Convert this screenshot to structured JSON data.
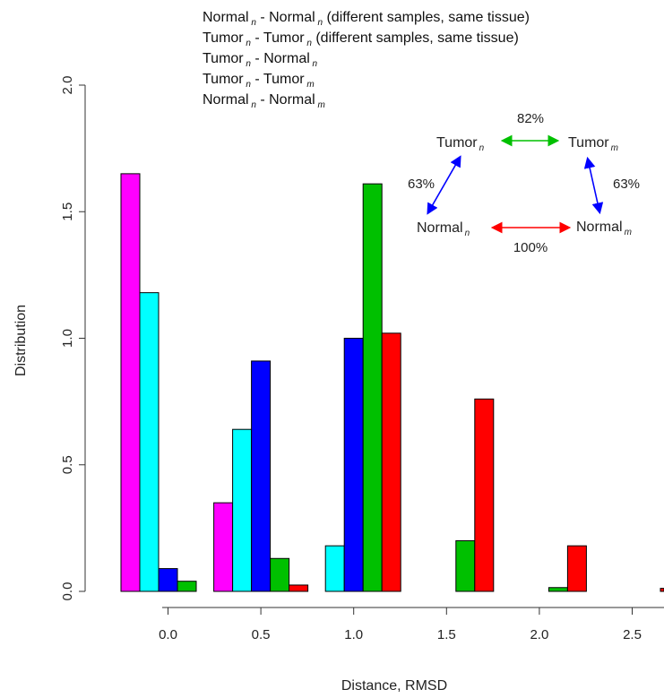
{
  "chart_data": {
    "type": "bar",
    "xlabel": "Distance, RMSD",
    "ylabel": "Distribution",
    "ylim": [
      0,
      2.0
    ],
    "y_ticks": [
      "0.0",
      "0.5",
      "1.0",
      "1.5",
      "2.0"
    ],
    "categories": [
      "0.0",
      "0.5",
      "1.0",
      "1.5",
      "2.0",
      "2.5"
    ],
    "x_ticks": [
      "0.0",
      "0.5",
      "1.0",
      "1.5",
      "2.0",
      "2.5"
    ],
    "series": [
      {
        "name": "Normal n - Normal n (different samples, same tissue)",
        "color": "#ff00ff",
        "values": [
          1.65,
          0.35,
          0.0,
          0.0,
          0.0,
          0.0
        ]
      },
      {
        "name": "Tumor n - Tumor n (different samples, same tissue)",
        "color": "#00ffff",
        "values": [
          1.18,
          0.64,
          0.18,
          0.0,
          0.0,
          0.0
        ]
      },
      {
        "name": "Tumor n - Normal n",
        "color": "#0000ff",
        "values": [
          0.09,
          0.91,
          1.0,
          0.0,
          0.0,
          0.0
        ]
      },
      {
        "name": "Tumor n - Tumor m",
        "color": "#00c000",
        "values": [
          0.04,
          0.13,
          1.61,
          0.2,
          0.015,
          0.0
        ]
      },
      {
        "name": "Normal n - Normal m",
        "color": "#ff0000",
        "values": [
          0.0,
          0.025,
          1.02,
          0.76,
          0.18,
          0.012
        ]
      }
    ],
    "grid": false,
    "legend_position": "top",
    "legend": [
      {
        "a": "Normal",
        "as": "n",
        "b": "Normal",
        "bs": "n",
        "note": "(different samples, same tissue)"
      },
      {
        "a": "Tumor",
        "as": "n",
        "b": "Tumor",
        "bs": "n",
        "note": "(different samples, same tissue)"
      },
      {
        "a": "Tumor",
        "as": "n",
        "b": "Normal",
        "bs": "n",
        "note": ""
      },
      {
        "a": "Tumor",
        "as": "n",
        "b": "Tumor",
        "bs": "m",
        "note": ""
      },
      {
        "a": "Normal",
        "as": "n",
        "b": "Normal",
        "bs": "m",
        "note": ""
      }
    ]
  },
  "diagram": {
    "nodes": {
      "tumor_n": {
        "label": "Tumor",
        "sub": "n"
      },
      "tumor_m": {
        "label": "Tumor",
        "sub": "m"
      },
      "normal_n": {
        "label": "Normal",
        "sub": "n"
      },
      "normal_m": {
        "label": "Normal",
        "sub": "m"
      }
    },
    "edges": {
      "top": {
        "percent": "82%",
        "color": "#00c000"
      },
      "left": {
        "percent": "63%",
        "color": "#0000ff"
      },
      "right": {
        "percent": "63%",
        "color": "#0000ff"
      },
      "bottom": {
        "percent": "100%",
        "color": "#ff0000"
      }
    }
  }
}
